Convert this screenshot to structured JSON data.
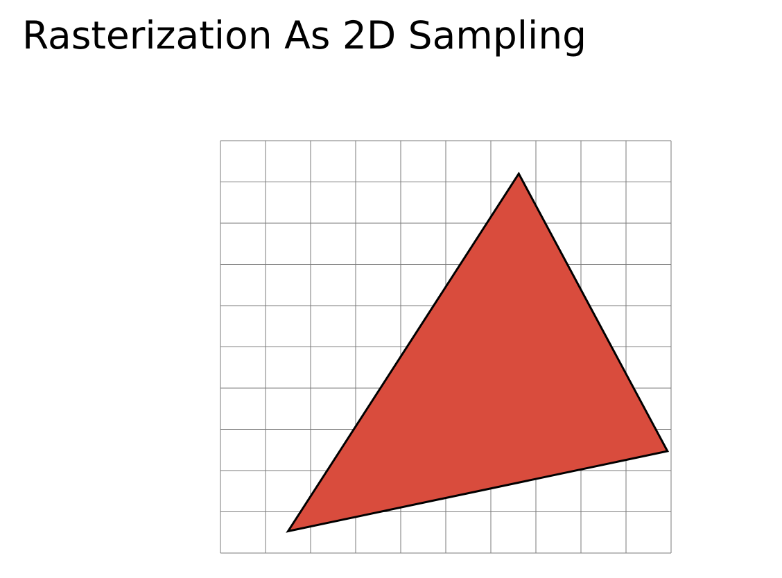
{
  "slide": {
    "title": "Rasterization As 2D Sampling"
  },
  "diagram": {
    "grid": {
      "columns": 10,
      "rows": 10
    },
    "triangle": {
      "vertices_in_grid_units": [
        [
          6.62,
          0.8
        ],
        [
          9.92,
          7.53
        ],
        [
          1.5,
          9.47
        ]
      ],
      "fill_color": "#d94c3d",
      "stroke_color": "#000000"
    },
    "grid_line_color": "#7a7a7a"
  }
}
